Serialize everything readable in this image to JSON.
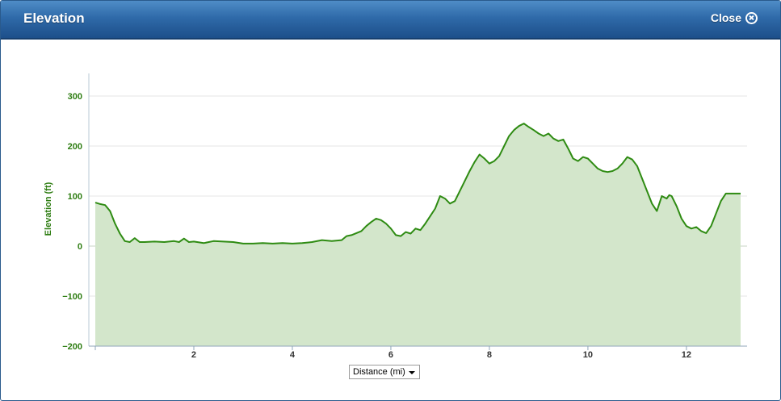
{
  "window": {
    "title": "Elevation",
    "close_label": "Close"
  },
  "controls": {
    "unit_select": "Distance (mi)"
  },
  "colors": {
    "line": "#2e8b12",
    "fill": "#d3e6cb",
    "axis_text": "#2e7d12",
    "title_bar": "#2f6aa9"
  },
  "chart_data": {
    "type": "area",
    "title": "",
    "xlabel": "Distance (mi)",
    "ylabel": "Elevation (ft)",
    "xlim": [
      0,
      13.1
    ],
    "ylim": [
      -200,
      350
    ],
    "x_ticks": [
      2,
      4,
      6,
      8,
      10,
      12
    ],
    "y_ticks": [
      300,
      200,
      100,
      0,
      -100,
      -200
    ],
    "grid": true,
    "legend": "none",
    "series": [
      {
        "x": [
          0.0,
          0.1,
          0.2,
          0.3,
          0.4,
          0.5,
          0.6,
          0.7,
          0.8,
          0.9,
          1.0,
          1.2,
          1.4,
          1.6,
          1.7,
          1.8,
          1.9,
          2.0,
          2.2,
          2.4,
          2.6,
          2.8,
          3.0,
          3.2,
          3.4,
          3.6,
          3.8,
          4.0,
          4.2,
          4.4,
          4.6,
          4.8,
          5.0,
          5.1,
          5.2,
          5.4,
          5.5,
          5.6,
          5.7,
          5.8,
          5.9,
          6.0,
          6.1,
          6.2,
          6.3,
          6.4,
          6.5,
          6.6,
          6.7,
          6.8,
          6.9,
          7.0,
          7.1,
          7.2,
          7.3,
          7.4,
          7.5,
          7.6,
          7.7,
          7.8,
          7.9,
          8.0,
          8.1,
          8.2,
          8.3,
          8.4,
          8.5,
          8.6,
          8.7,
          8.8,
          8.9,
          9.0,
          9.1,
          9.2,
          9.3,
          9.4,
          9.5,
          9.6,
          9.7,
          9.8,
          9.9,
          10.0,
          10.1,
          10.2,
          10.3,
          10.4,
          10.5,
          10.6,
          10.7,
          10.8,
          10.9,
          11.0,
          11.1,
          11.2,
          11.3,
          11.4,
          11.5,
          11.6,
          11.65,
          11.7,
          11.8,
          11.9,
          12.0,
          12.1,
          12.2,
          12.3,
          12.4,
          12.5,
          12.6,
          12.7,
          12.8,
          12.9,
          13.0,
          13.1
        ],
        "values": [
          87,
          84,
          82,
          70,
          45,
          25,
          10,
          8,
          16,
          8,
          8,
          9,
          8,
          10,
          8,
          15,
          8,
          9,
          6,
          10,
          9,
          8,
          5,
          5,
          6,
          5,
          6,
          5,
          6,
          8,
          12,
          10,
          12,
          20,
          22,
          30,
          40,
          48,
          55,
          52,
          45,
          35,
          22,
          20,
          28,
          25,
          35,
          32,
          45,
          60,
          75,
          100,
          95,
          85,
          90,
          110,
          130,
          150,
          168,
          183,
          175,
          165,
          170,
          180,
          200,
          220,
          232,
          240,
          245,
          238,
          232,
          225,
          220,
          225,
          215,
          210,
          213,
          195,
          175,
          170,
          178,
          175,
          165,
          155,
          150,
          148,
          150,
          155,
          165,
          178,
          173,
          160,
          135,
          110,
          85,
          70,
          100,
          95,
          102,
          100,
          80,
          55,
          40,
          35,
          38,
          30,
          26,
          40,
          65,
          90,
          105,
          105,
          105,
          105
        ]
      }
    ]
  }
}
